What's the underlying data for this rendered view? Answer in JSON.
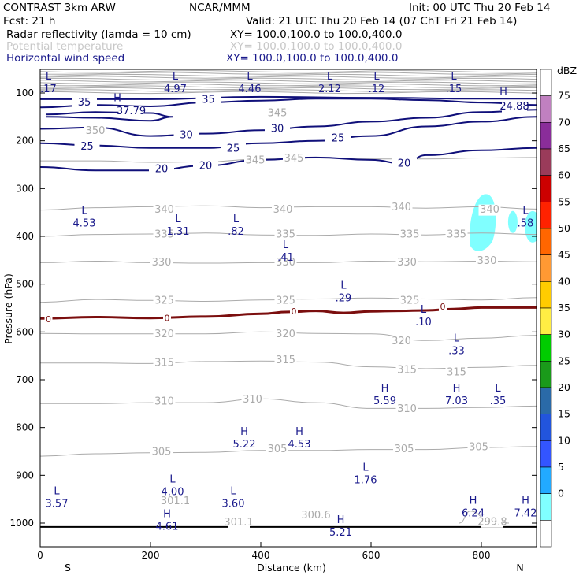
{
  "header": {
    "left1": "CONTRAST  3km ARW",
    "center1": "NCAR/MMM",
    "right1": "Init: 00 UTC Thu 20 Feb 14",
    "left2": "Fcst:    21 h",
    "right2": "Valid: 21 UTC Thu 20 Feb 14 (07 ChT Fri 21 Feb 14)",
    "field1": "Radar reflectivity (lamda = 10 cm)",
    "field1_xy": "XY= 100.0,100.0 to 100.0,400.0",
    "field2": "Potential temperature",
    "field2_xy": "XY= 100.0,100.0 to 100.0,400.0",
    "field3": "Horizontal wind speed",
    "field3_xy": "XY= 100.0,100.0 to 100.0,400.0"
  },
  "colors": {
    "theta": "#aaaaaa",
    "wind": "#10107a",
    "freezing": "#7b0e0e",
    "reflectivity": "#80ffff"
  },
  "chart_data": {
    "type": "cross-section",
    "xlabel": "Distance (km)",
    "ylabel": "Pressure (hPa)",
    "xlim": [
      0,
      900
    ],
    "ylim": [
      1050,
      50
    ],
    "x_ticks": [
      0,
      200,
      400,
      600,
      800
    ],
    "y_ticks": [
      100,
      200,
      300,
      400,
      500,
      600,
      700,
      800,
      900,
      1000
    ],
    "x_end_labels": {
      "left": "S",
      "right": "N"
    },
    "colorbar": {
      "unit": "dBZ",
      "levels": [
        "75",
        "70",
        "65",
        "60",
        "55",
        "50",
        "45",
        "40",
        "35",
        "30",
        "25",
        "20",
        "15",
        "10",
        "5",
        "0"
      ],
      "colors": [
        "#ffffff",
        "#c080c0",
        "#8a2d9a",
        "#9a3b5a",
        "#cc0000",
        "#ff2200",
        "#ff6600",
        "#ff9933",
        "#ffcc00",
        "#ffee44",
        "#00cc00",
        "#1a9a1a",
        "#2a6aa8",
        "#2255dd",
        "#3355ff",
        "#22aaff",
        "#80ffff",
        "#ffffff"
      ]
    },
    "theta_labels": [
      {
        "text": "345",
        "x": 430,
        "p": 143
      },
      {
        "text": "350",
        "x": 100,
        "p": 180
      },
      {
        "text": "345",
        "x": 390,
        "p": 242
      },
      {
        "text": "345",
        "x": 460,
        "p": 238
      },
      {
        "text": "340",
        "x": 225,
        "p": 345
      },
      {
        "text": "340",
        "x": 440,
        "p": 345
      },
      {
        "text": "340",
        "x": 655,
        "p": 340
      },
      {
        "text": "340",
        "x": 815,
        "p": 345
      },
      {
        "text": "335",
        "x": 225,
        "p": 397
      },
      {
        "text": "335",
        "x": 445,
        "p": 397
      },
      {
        "text": "335",
        "x": 670,
        "p": 397
      },
      {
        "text": "335",
        "x": 755,
        "p": 397
      },
      {
        "text": "330",
        "x": 220,
        "p": 455
      },
      {
        "text": "330",
        "x": 445,
        "p": 455
      },
      {
        "text": "330",
        "x": 665,
        "p": 455
      },
      {
        "text": "330",
        "x": 810,
        "p": 452
      },
      {
        "text": "325",
        "x": 225,
        "p": 535
      },
      {
        "text": "325",
        "x": 445,
        "p": 535
      },
      {
        "text": "325",
        "x": 670,
        "p": 535
      },
      {
        "text": "320",
        "x": 225,
        "p": 605
      },
      {
        "text": "320",
        "x": 445,
        "p": 605
      },
      {
        "text": "320",
        "x": 655,
        "p": 620
      },
      {
        "text": "315",
        "x": 225,
        "p": 665
      },
      {
        "text": "315",
        "x": 445,
        "p": 660
      },
      {
        "text": "315",
        "x": 665,
        "p": 680
      },
      {
        "text": "315",
        "x": 755,
        "p": 685
      },
      {
        "text": "310",
        "x": 225,
        "p": 746
      },
      {
        "text": "310",
        "x": 385,
        "p": 742
      },
      {
        "text": "310",
        "x": 665,
        "p": 762
      },
      {
        "text": "305",
        "x": 220,
        "p": 852
      },
      {
        "text": "305",
        "x": 430,
        "p": 846
      },
      {
        "text": "305",
        "x": 660,
        "p": 846
      },
      {
        "text": "305",
        "x": 795,
        "p": 842
      },
      {
        "text": "301.1",
        "x": 245,
        "p": 955
      },
      {
        "text": "301.1",
        "x": 360,
        "p": 999
      },
      {
        "text": "300.6",
        "x": 500,
        "p": 984
      },
      {
        "text": "299.8",
        "x": 820,
        "p": 998
      }
    ],
    "wind_labels": [
      {
        "text": "35",
        "x": 80,
        "p": 121
      },
      {
        "text": "35",
        "x": 305,
        "p": 115
      },
      {
        "text": "37.79",
        "x": 165,
        "p": 139
      },
      {
        "text": "30",
        "x": 265,
        "p": 189
      },
      {
        "text": "30",
        "x": 430,
        "p": 176
      },
      {
        "text": "25",
        "x": 85,
        "p": 213
      },
      {
        "text": "25",
        "x": 350,
        "p": 217
      },
      {
        "text": "25",
        "x": 540,
        "p": 196
      },
      {
        "text": "20",
        "x": 220,
        "p": 260
      },
      {
        "text": "20",
        "x": 300,
        "p": 253
      },
      {
        "text": "20",
        "x": 660,
        "p": 248
      },
      {
        "text": "24.88",
        "x": 860,
        "p": 129
      }
    ],
    "extrema": [
      {
        "kind": "L",
        "value": ".17",
        "x": 15,
        "p": 72
      },
      {
        "kind": "L",
        "value": "4.97",
        "x": 245,
        "p": 72
      },
      {
        "kind": "L",
        "value": "4.46",
        "x": 380,
        "p": 72
      },
      {
        "kind": "L",
        "value": "2.12",
        "x": 525,
        "p": 72
      },
      {
        "kind": "L",
        "value": ".12",
        "x": 610,
        "p": 72
      },
      {
        "kind": "L",
        "value": ".15",
        "x": 750,
        "p": 72
      },
      {
        "kind": "H",
        "value": "",
        "x": 140,
        "p": 117
      },
      {
        "kind": "H",
        "value": "",
        "x": 840,
        "p": 103
      },
      {
        "kind": "L",
        "value": "4.53",
        "x": 80,
        "p": 353
      },
      {
        "kind": "L",
        "value": "1.31",
        "x": 250,
        "p": 370
      },
      {
        "kind": "L",
        "value": ".82",
        "x": 355,
        "p": 370
      },
      {
        "kind": "L",
        "value": ".41",
        "x": 445,
        "p": 425
      },
      {
        "kind": "L",
        "value": ".58",
        "x": 880,
        "p": 353
      },
      {
        "kind": "L",
        "value": ".29",
        "x": 550,
        "p": 510
      },
      {
        "kind": "L",
        "value": ".10",
        "x": 695,
        "p": 560
      },
      {
        "kind": "L",
        "value": ".33",
        "x": 755,
        "p": 620
      },
      {
        "kind": "H",
        "value": "5.59",
        "x": 625,
        "p": 725
      },
      {
        "kind": "H",
        "value": "7.03",
        "x": 755,
        "p": 725
      },
      {
        "kind": "L",
        "value": ".35",
        "x": 830,
        "p": 725
      },
      {
        "kind": "H",
        "value": "5.22",
        "x": 370,
        "p": 815
      },
      {
        "kind": "H",
        "value": "4.53",
        "x": 470,
        "p": 815
      },
      {
        "kind": "L",
        "value": "1.76",
        "x": 590,
        "p": 890
      },
      {
        "kind": "L",
        "value": "3.57",
        "x": 30,
        "p": 940
      },
      {
        "kind": "L",
        "value": "4.00",
        "x": 240,
        "p": 915
      },
      {
        "kind": "L",
        "value": "3.60",
        "x": 350,
        "p": 940
      },
      {
        "kind": "H",
        "value": "6.24",
        "x": 785,
        "p": 960
      },
      {
        "kind": "H",
        "value": "7.42",
        "x": 880,
        "p": 960
      },
      {
        "kind": "H",
        "value": "4.61",
        "x": 230,
        "p": 988
      },
      {
        "kind": "H",
        "value": "5.21",
        "x": 545,
        "p": 1000
      }
    ],
    "zero_labels": [
      {
        "text": "0",
        "x": 15,
        "p": 575
      },
      {
        "text": "0",
        "x": 230,
        "p": 572
      },
      {
        "text": "0",
        "x": 460,
        "p": 558
      },
      {
        "text": "0",
        "x": 730,
        "p": 548
      }
    ],
    "freezing_line": [
      [
        0,
        572
      ],
      [
        100,
        569
      ],
      [
        200,
        571
      ],
      [
        300,
        568
      ],
      [
        400,
        562
      ],
      [
        450,
        558
      ],
      [
        500,
        556
      ],
      [
        550,
        560
      ],
      [
        600,
        557
      ],
      [
        650,
        556
      ],
      [
        700,
        555
      ],
      [
        750,
        552
      ],
      [
        800,
        549
      ],
      [
        850,
        549
      ],
      [
        900,
        549
      ]
    ],
    "theta_lines": [
      [
        [
          0,
          345
        ],
        [
          100,
          340
        ],
        [
          200,
          338
        ],
        [
          300,
          336
        ],
        [
          400,
          340
        ],
        [
          500,
          338
        ],
        [
          600,
          338
        ],
        [
          700,
          341
        ],
        [
          800,
          338
        ],
        [
          900,
          343
        ]
      ],
      [
        [
          0,
          400
        ],
        [
          100,
          396
        ],
        [
          200,
          395
        ],
        [
          300,
          393
        ],
        [
          400,
          397
        ],
        [
          500,
          398
        ],
        [
          600,
          395
        ],
        [
          700,
          397
        ],
        [
          800,
          393
        ],
        [
          900,
          396
        ]
      ],
      [
        [
          0,
          455
        ],
        [
          100,
          452
        ],
        [
          200,
          455
        ],
        [
          300,
          456
        ],
        [
          400,
          455
        ],
        [
          500,
          455
        ],
        [
          600,
          452
        ],
        [
          700,
          453
        ],
        [
          800,
          452
        ],
        [
          900,
          453
        ]
      ],
      [
        [
          0,
          538
        ],
        [
          100,
          532
        ],
        [
          200,
          534
        ],
        [
          300,
          536
        ],
        [
          400,
          533
        ],
        [
          500,
          531
        ],
        [
          600,
          529
        ],
        [
          700,
          531
        ],
        [
          800,
          533
        ],
        [
          900,
          528
        ]
      ],
      [
        [
          0,
          603
        ],
        [
          100,
          604
        ],
        [
          200,
          604
        ],
        [
          300,
          604
        ],
        [
          400,
          600
        ],
        [
          500,
          603
        ],
        [
          600,
          604
        ],
        [
          700,
          618
        ],
        [
          800,
          613
        ],
        [
          900,
          607
        ]
      ],
      [
        [
          0,
          665
        ],
        [
          100,
          665
        ],
        [
          200,
          666
        ],
        [
          300,
          662
        ],
        [
          400,
          661
        ],
        [
          500,
          663
        ],
        [
          600,
          673
        ],
        [
          700,
          677
        ],
        [
          800,
          674
        ],
        [
          900,
          670
        ]
      ],
      [
        [
          0,
          750
        ],
        [
          100,
          750
        ],
        [
          200,
          748
        ],
        [
          300,
          748
        ],
        [
          400,
          740
        ],
        [
          500,
          748
        ],
        [
          600,
          760
        ],
        [
          700,
          760
        ],
        [
          800,
          758
        ],
        [
          900,
          755
        ]
      ],
      [
        [
          0,
          860
        ],
        [
          100,
          855
        ],
        [
          200,
          853
        ],
        [
          300,
          852
        ],
        [
          400,
          848
        ],
        [
          500,
          848
        ],
        [
          600,
          846
        ],
        [
          700,
          846
        ],
        [
          800,
          842
        ],
        [
          900,
          840
        ]
      ],
      [
        [
          0,
          242
        ],
        [
          100,
          242
        ],
        [
          200,
          245
        ],
        [
          300,
          244
        ],
        [
          400,
          238
        ],
        [
          500,
          236
        ],
        [
          600,
          238
        ],
        [
          700,
          238
        ],
        [
          800,
          236
        ],
        [
          900,
          235
        ]
      ]
    ],
    "wind_lines": [
      [
        [
          0,
          255
        ],
        [
          100,
          262
        ],
        [
          200,
          262
        ],
        [
          300,
          252
        ],
        [
          400,
          240
        ],
        [
          500,
          235
        ],
        [
          600,
          240
        ],
        [
          660,
          248
        ],
        [
          700,
          230
        ],
        [
          800,
          220
        ],
        [
          900,
          215
        ]
      ],
      [
        [
          0,
          205
        ],
        [
          100,
          210
        ],
        [
          200,
          215
        ],
        [
          300,
          215
        ],
        [
          400,
          205
        ],
        [
          500,
          200
        ],
        [
          600,
          190
        ],
        [
          700,
          170
        ],
        [
          800,
          160
        ],
        [
          900,
          150
        ]
      ],
      [
        [
          0,
          175
        ],
        [
          100,
          172
        ],
        [
          200,
          190
        ],
        [
          300,
          185
        ],
        [
          400,
          178
        ],
        [
          500,
          170
        ],
        [
          600,
          160
        ],
        [
          700,
          152
        ],
        [
          800,
          140
        ],
        [
          900,
          135
        ]
      ],
      [
        [
          0,
          130
        ],
        [
          100,
          125
        ],
        [
          200,
          128
        ],
        [
          300,
          120
        ],
        [
          400,
          116
        ],
        [
          500,
          112
        ],
        [
          600,
          112
        ],
        [
          700,
          115
        ],
        [
          800,
          120
        ],
        [
          900,
          125
        ]
      ],
      [
        [
          0,
          113
        ],
        [
          200,
          113
        ],
        [
          400,
          108
        ],
        [
          600,
          110
        ],
        [
          800,
          112
        ],
        [
          900,
          112
        ]
      ],
      [
        [
          10,
          145
        ],
        [
          100,
          140
        ],
        [
          200,
          142
        ],
        [
          240,
          150
        ],
        [
          200,
          158
        ],
        [
          100,
          152
        ],
        [
          10,
          150
        ]
      ]
    ]
  }
}
